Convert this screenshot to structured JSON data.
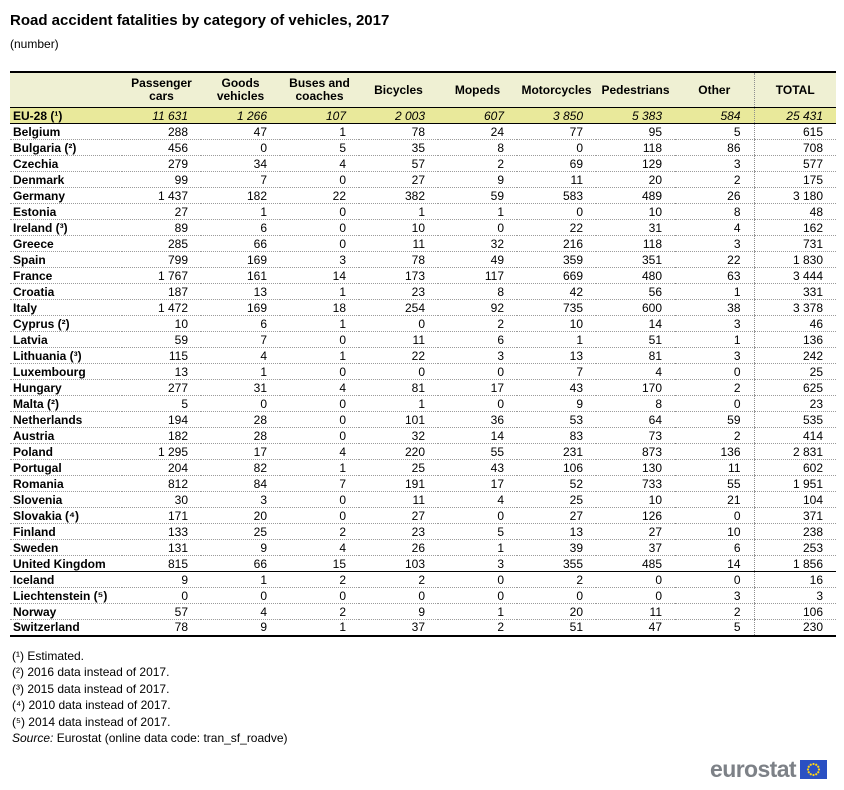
{
  "chart_data": {
    "type": "table",
    "title": "Road accident fatalities by category of vehicles, 2017",
    "unit_label": "(number)",
    "columns": [
      "Passenger cars",
      "Goods vehicles",
      "Buses and coaches",
      "Bicycles",
      "Mopeds",
      "Motorcycles",
      "Pedestrians",
      "Other",
      "TOTAL"
    ],
    "total_row": {
      "label": "EU-28 (¹)",
      "values": [
        11631,
        1266,
        107,
        2003,
        607,
        3850,
        5383,
        584,
        25431
      ]
    },
    "eu_rows": [
      {
        "label": "Belgium",
        "values": [
          288,
          47,
          1,
          78,
          24,
          77,
          95,
          5,
          615
        ]
      },
      {
        "label": "Bulgaria (²)",
        "values": [
          456,
          0,
          5,
          35,
          8,
          0,
          118,
          86,
          708
        ]
      },
      {
        "label": "Czechia",
        "values": [
          279,
          34,
          4,
          57,
          2,
          69,
          129,
          3,
          577
        ]
      },
      {
        "label": "Denmark",
        "values": [
          99,
          7,
          0,
          27,
          9,
          11,
          20,
          2,
          175
        ]
      },
      {
        "label": "Germany",
        "values": [
          1437,
          182,
          22,
          382,
          59,
          583,
          489,
          26,
          3180
        ]
      },
      {
        "label": "Estonia",
        "values": [
          27,
          1,
          0,
          1,
          1,
          0,
          10,
          8,
          48
        ]
      },
      {
        "label": "Ireland (³)",
        "values": [
          89,
          6,
          0,
          10,
          0,
          22,
          31,
          4,
          162
        ]
      },
      {
        "label": "Greece",
        "values": [
          285,
          66,
          0,
          11,
          32,
          216,
          118,
          3,
          731
        ]
      },
      {
        "label": "Spain",
        "values": [
          799,
          169,
          3,
          78,
          49,
          359,
          351,
          22,
          1830
        ]
      },
      {
        "label": "France",
        "values": [
          1767,
          161,
          14,
          173,
          117,
          669,
          480,
          63,
          3444
        ]
      },
      {
        "label": "Croatia",
        "values": [
          187,
          13,
          1,
          23,
          8,
          42,
          56,
          1,
          331
        ]
      },
      {
        "label": "Italy",
        "values": [
          1472,
          169,
          18,
          254,
          92,
          735,
          600,
          38,
          3378
        ]
      },
      {
        "label": "Cyprus (²)",
        "values": [
          10,
          6,
          1,
          0,
          2,
          10,
          14,
          3,
          46
        ]
      },
      {
        "label": "Latvia",
        "values": [
          59,
          7,
          0,
          11,
          6,
          1,
          51,
          1,
          136
        ]
      },
      {
        "label": "Lithuania (³)",
        "values": [
          115,
          4,
          1,
          22,
          3,
          13,
          81,
          3,
          242
        ]
      },
      {
        "label": "Luxembourg",
        "values": [
          13,
          1,
          0,
          0,
          0,
          7,
          4,
          0,
          25
        ]
      },
      {
        "label": "Hungary",
        "values": [
          277,
          31,
          4,
          81,
          17,
          43,
          170,
          2,
          625
        ]
      },
      {
        "label": "Malta (²)",
        "values": [
          5,
          0,
          0,
          1,
          0,
          9,
          8,
          0,
          23
        ]
      },
      {
        "label": "Netherlands",
        "values": [
          194,
          28,
          0,
          101,
          36,
          53,
          64,
          59,
          535
        ]
      },
      {
        "label": "Austria",
        "values": [
          182,
          28,
          0,
          32,
          14,
          83,
          73,
          2,
          414
        ]
      },
      {
        "label": "Poland",
        "values": [
          1295,
          17,
          4,
          220,
          55,
          231,
          873,
          136,
          2831
        ]
      },
      {
        "label": "Portugal",
        "values": [
          204,
          82,
          1,
          25,
          43,
          106,
          130,
          11,
          602
        ]
      },
      {
        "label": "Romania",
        "values": [
          812,
          84,
          7,
          191,
          17,
          52,
          733,
          55,
          1951
        ]
      },
      {
        "label": "Slovenia",
        "values": [
          30,
          3,
          0,
          11,
          4,
          25,
          10,
          21,
          104
        ]
      },
      {
        "label": "Slovakia (⁴)",
        "values": [
          171,
          20,
          0,
          27,
          0,
          27,
          126,
          0,
          371
        ]
      },
      {
        "label": "Finland",
        "values": [
          133,
          25,
          2,
          23,
          5,
          13,
          27,
          10,
          238
        ]
      },
      {
        "label": "Sweden",
        "values": [
          131,
          9,
          4,
          26,
          1,
          39,
          37,
          6,
          253
        ]
      },
      {
        "label": "United Kingdom",
        "values": [
          815,
          66,
          15,
          103,
          3,
          355,
          485,
          14,
          1856
        ]
      }
    ],
    "efta_rows": [
      {
        "label": "Iceland",
        "values": [
          9,
          1,
          2,
          2,
          0,
          2,
          0,
          0,
          16
        ]
      },
      {
        "label": "Liechtenstein (⁵)",
        "values": [
          0,
          0,
          0,
          0,
          0,
          0,
          0,
          3,
          3
        ]
      },
      {
        "label": "Norway",
        "values": [
          57,
          4,
          2,
          9,
          1,
          20,
          11,
          2,
          106
        ]
      },
      {
        "label": "Switzerland",
        "values": [
          78,
          9,
          1,
          37,
          2,
          51,
          47,
          5,
          230
        ]
      }
    ]
  },
  "footnotes": [
    "(¹) Estimated.",
    "(²) 2016 data instead of 2017.",
    "(³) 2015 data instead of 2017.",
    "(⁴) 2010 data instead of 2017.",
    "(⁵) 2014 data instead of 2017."
  ],
  "source": {
    "label": "Source:",
    "text": " Eurostat (online data code: tran_sf_roadve)"
  },
  "logo": {
    "text": "eurostat"
  },
  "colors": {
    "header_bg": "#EFF0D3",
    "eu_total_bg": "#E9E99B",
    "flag_blue": "#2A50C3",
    "star_yellow": "#FFD617",
    "logo_gray": "#7D8187"
  }
}
